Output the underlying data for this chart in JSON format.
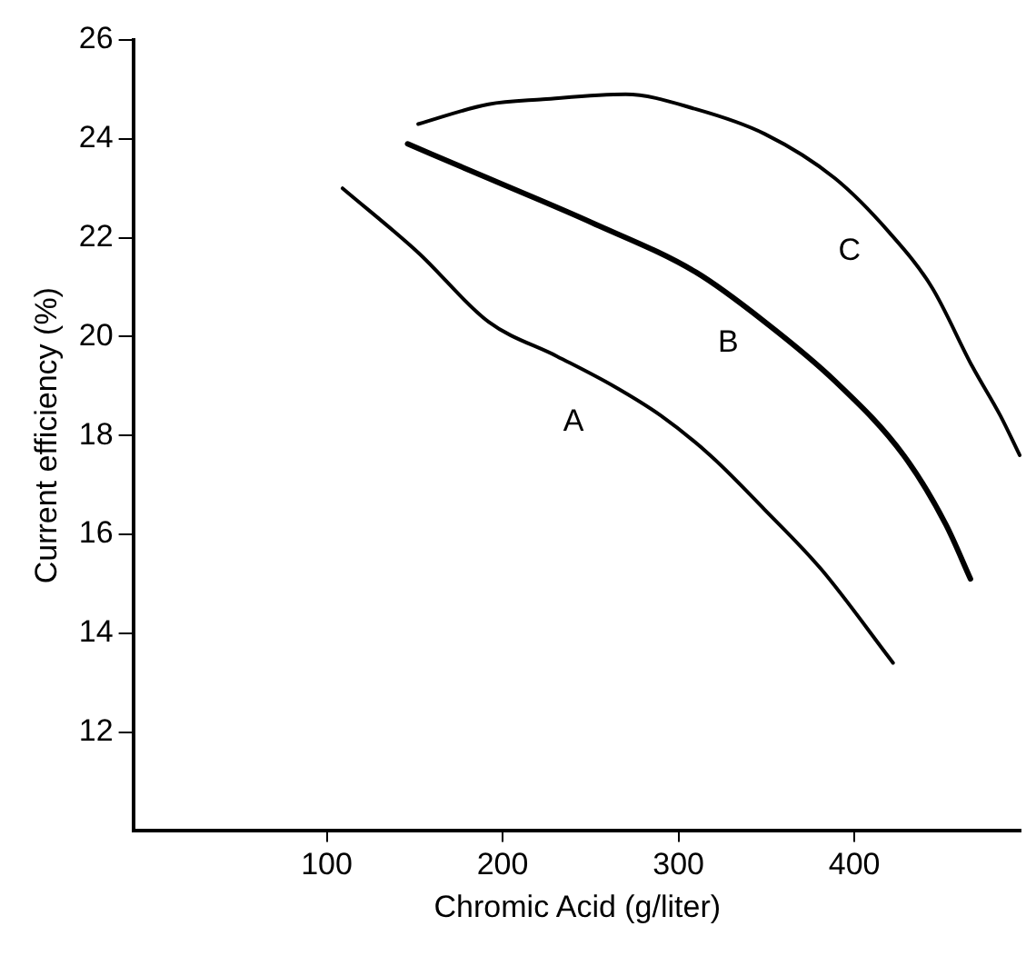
{
  "chart_data": {
    "type": "line",
    "xlabel": "Chromic Acid (g/liter)",
    "ylabel": "Current efficiency (%)",
    "xlim": [
      -10,
      495
    ],
    "xticks": [
      100,
      200,
      300,
      400
    ],
    "ylim": [
      10,
      26
    ],
    "yticks": [
      12,
      14,
      16,
      18,
      20,
      22,
      24,
      26
    ],
    "grid": false,
    "legend": false,
    "marker": "none",
    "line_style": "solid",
    "series": [
      {
        "name": "A",
        "color": "#000000",
        "x": [
          109,
          152,
          192,
          231,
          263,
          290,
          318,
          349,
          381,
          422
        ],
        "values": [
          23.0,
          21.7,
          20.3,
          19.6,
          19.0,
          18.4,
          17.6,
          16.5,
          15.3,
          13.4
        ]
      },
      {
        "name": "B",
        "color": "#000000",
        "x": [
          146,
          192,
          251,
          310,
          349,
          389,
          428,
          452,
          466
        ],
        "values": [
          23.9,
          23.2,
          22.3,
          21.3,
          20.3,
          19.1,
          17.6,
          16.2,
          15.1
        ]
      },
      {
        "name": "C",
        "color": "#000000",
        "x": [
          152,
          192,
          223,
          270,
          310,
          349,
          389,
          420,
          444,
          467,
          483,
          494
        ],
        "values": [
          24.3,
          24.7,
          24.8,
          24.9,
          24.6,
          24.1,
          23.2,
          22.1,
          21.0,
          19.4,
          18.4,
          17.6
        ]
      }
    ]
  }
}
